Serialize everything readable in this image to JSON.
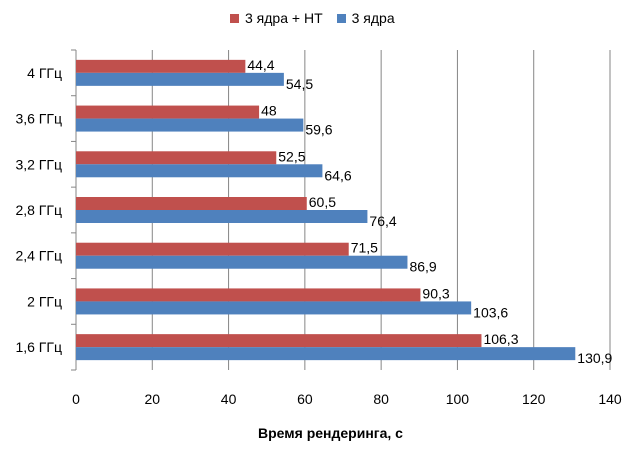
{
  "chart_data": {
    "type": "bar",
    "orientation": "horizontal",
    "categories": [
      "4 ГГц",
      "3,6 ГГц",
      "3,2 ГГц",
      "2,8 ГГц",
      "2,4 ГГц",
      "2 ГГц",
      "1,6 ГГц"
    ],
    "series": [
      {
        "name": "3 ядра + HT",
        "color": "#C0504D",
        "values": [
          44.4,
          48,
          52.5,
          60.5,
          71.5,
          90.3,
          106.3
        ],
        "labels": [
          "44,4",
          "48",
          "52,5",
          "60,5",
          "71,5",
          "90,3",
          "106,3"
        ]
      },
      {
        "name": "3 ядра",
        "color": "#4F81BD",
        "values": [
          54.5,
          59.6,
          64.6,
          76.4,
          86.9,
          103.6,
          130.9
        ],
        "labels": [
          "54,5",
          "59,6",
          "64,6",
          "76,4",
          "86,9",
          "103,6",
          "130,9"
        ]
      }
    ],
    "xlabel": "Время рендеринга, с",
    "ylabel": "",
    "xlim": [
      0,
      140
    ],
    "xticks": [
      0,
      20,
      40,
      60,
      80,
      100,
      120,
      140
    ],
    "grid": true,
    "legend_position": "top"
  }
}
